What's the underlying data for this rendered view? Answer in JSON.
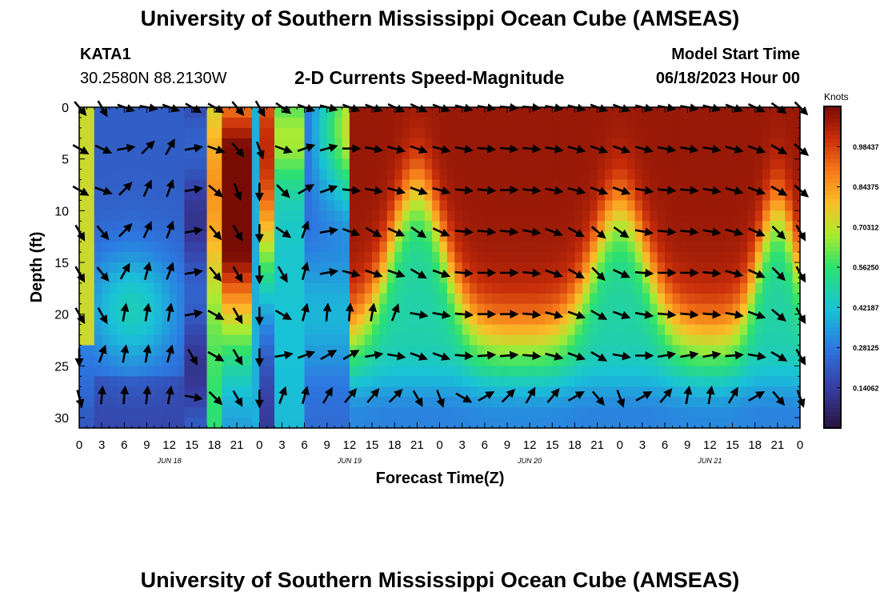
{
  "header": {
    "title": "University of Southern Mississippi Ocean Cube (AMSEAS)",
    "station_id": "KATA1",
    "station_coords": "30.2580N  88.2130W",
    "model_start_label": "Model Start Time",
    "model_start_value": "06/18/2023 Hour 00"
  },
  "footer": {
    "title": "University of Southern Mississippi Ocean Cube (AMSEAS)"
  },
  "chart_data": {
    "type": "heatmap",
    "title": "2-D Currents Speed-Magnitude",
    "xlabel": "Forecast Time(Z)",
    "ylabel": "Depth (ft)",
    "x_tick_labels": [
      "0",
      "3",
      "6",
      "9",
      "12",
      "15",
      "18",
      "21",
      "0",
      "3",
      "6",
      "9",
      "12",
      "15",
      "18",
      "21",
      "0",
      "3",
      "6",
      "9",
      "12",
      "15",
      "18",
      "21",
      "0",
      "3",
      "6",
      "9",
      "12",
      "15",
      "18",
      "21",
      "0"
    ],
    "day_labels": [
      "JUN 18",
      "JUN 19",
      "JUN 20",
      "JUN 21"
    ],
    "x_range_hours": [
      0,
      96
    ],
    "y_ticks": [
      0,
      5,
      10,
      15,
      20,
      25,
      30
    ],
    "ylim": [
      0,
      31
    ],
    "colorbar": {
      "unit": "Knots",
      "min": 0.0,
      "max": 1.125,
      "tick_labels": [
        "0.14062",
        "0.28125",
        "0.42187",
        "0.56250",
        "0.70312",
        "0.84375",
        "0.98437"
      ],
      "tick_values": [
        0.14062,
        0.28125,
        0.42187,
        0.5625,
        0.70312,
        0.84375,
        0.98437
      ]
    },
    "vector_depths_ft": [
      0,
      4,
      8,
      12,
      16,
      20,
      24,
      28
    ],
    "vector_hours": [
      0,
      3,
      6,
      9,
      12,
      15,
      18,
      21,
      24,
      27,
      30,
      33,
      36,
      39,
      42,
      45,
      48,
      51,
      54,
      57,
      60,
      63,
      66,
      69,
      72,
      75,
      78,
      81,
      84,
      87,
      90,
      93,
      96
    ],
    "vector_directions_deg": [
      [
        140,
        150,
        110,
        100,
        110,
        120,
        120,
        140,
        150,
        125,
        110,
        105,
        110,
        110,
        115,
        115,
        110,
        105,
        100,
        95,
        95,
        100,
        105,
        110,
        110,
        105,
        100,
        100,
        105,
        110,
        115,
        125,
        135
      ],
      [
        120,
        115,
        80,
        45,
        30,
        80,
        110,
        140,
        160,
        110,
        70,
        75,
        90,
        100,
        105,
        110,
        105,
        100,
        95,
        95,
        95,
        100,
        105,
        110,
        110,
        105,
        100,
        100,
        100,
        105,
        110,
        120,
        130
      ],
      [
        120,
        110,
        45,
        25,
        20,
        80,
        130,
        160,
        180,
        135,
        60,
        70,
        95,
        100,
        105,
        110,
        105,
        95,
        95,
        90,
        95,
        100,
        105,
        110,
        110,
        100,
        95,
        95,
        100,
        105,
        110,
        120,
        130
      ],
      [
        150,
        140,
        45,
        25,
        20,
        80,
        140,
        150,
        180,
        125,
        20,
        80,
        110,
        120,
        115,
        125,
        115,
        95,
        95,
        95,
        100,
        110,
        120,
        130,
        125,
        100,
        95,
        95,
        100,
        105,
        115,
        135,
        150
      ],
      [
        150,
        140,
        30,
        15,
        20,
        80,
        140,
        150,
        180,
        150,
        15,
        80,
        105,
        110,
        110,
        120,
        110,
        95,
        90,
        90,
        95,
        110,
        120,
        135,
        115,
        95,
        90,
        90,
        95,
        105,
        115,
        135,
        150
      ],
      [
        150,
        150,
        10,
        10,
        10,
        80,
        120,
        150,
        180,
        120,
        15,
        5,
        5,
        10,
        20,
        100,
        100,
        95,
        90,
        90,
        95,
        105,
        110,
        120,
        110,
        100,
        95,
        95,
        95,
        100,
        110,
        130,
        150
      ],
      [
        180,
        20,
        10,
        10,
        15,
        150,
        120,
        150,
        180,
        80,
        70,
        60,
        60,
        80,
        100,
        110,
        110,
        95,
        85,
        85,
        95,
        105,
        110,
        120,
        100,
        90,
        80,
        80,
        80,
        85,
        100,
        120,
        150
      ],
      [
        165,
        5,
        5,
        5,
        10,
        100,
        135,
        150,
        180,
        20,
        15,
        30,
        40,
        40,
        45,
        150,
        160,
        120,
        60,
        45,
        30,
        40,
        60,
        140,
        160,
        60,
        40,
        10,
        10,
        30,
        60,
        140,
        160
      ]
    ]
  }
}
